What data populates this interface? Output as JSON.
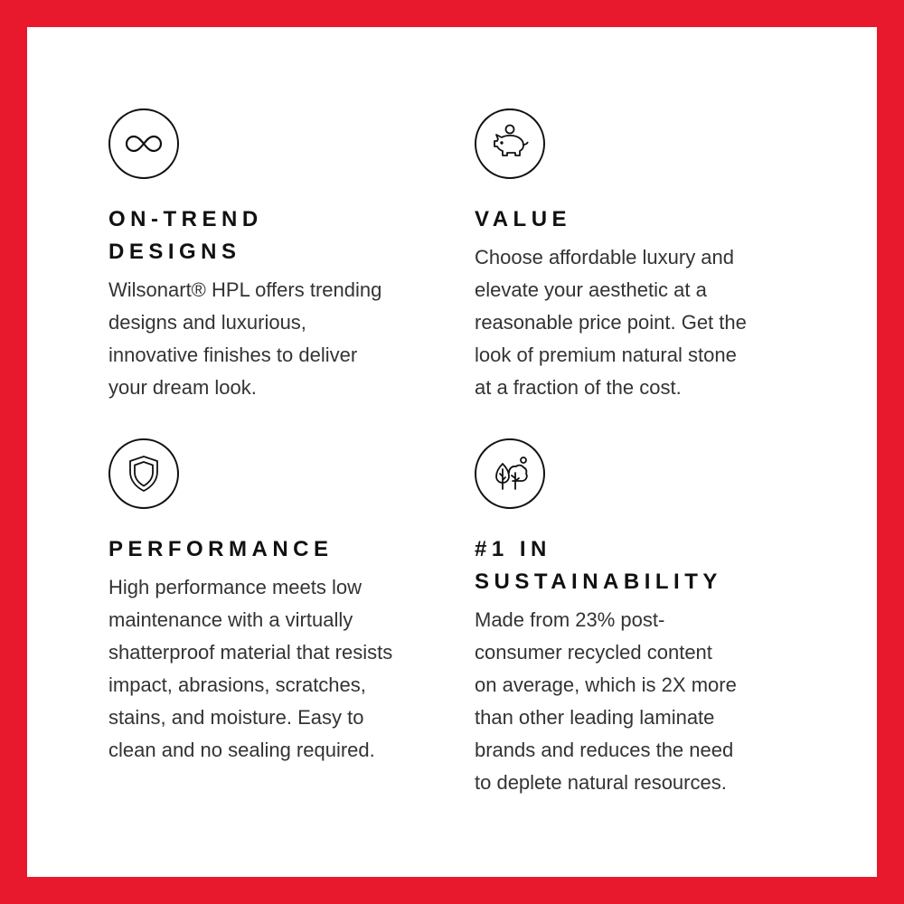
{
  "colors": {
    "border": "#e8192c",
    "text": "#333333",
    "heading": "#111111"
  },
  "features": [
    {
      "icon": "infinity-icon",
      "heading": [
        "ON-TREND",
        "DESIGNS"
      ],
      "body": [
        "Wilsonart® HPL offers trending",
        "designs and luxurious,",
        "innovative finishes to deliver",
        "your dream look."
      ]
    },
    {
      "icon": "piggy-bank-icon",
      "heading": [
        "VALUE"
      ],
      "body": [
        "Choose affordable luxury and",
        "elevate your aesthetic at a",
        "reasonable price point. Get the",
        "look of premium natural stone",
        "at a fraction of the cost."
      ]
    },
    {
      "icon": "shield-icon",
      "heading": [
        "PERFORMANCE"
      ],
      "body": [
        "High performance meets low",
        "maintenance with a virtually",
        "shatterproof material that resists",
        "impact, abrasions, scratches,",
        "stains, and moisture. Easy to",
        "clean and no sealing required."
      ]
    },
    {
      "icon": "trees-icon",
      "heading": [
        "#1 IN",
        "SUSTAINABILITY"
      ],
      "body": [
        "Made from 23% post-",
        "consumer recycled content",
        "on average, which is 2X more",
        "than other leading laminate",
        "brands and reduces the need",
        "to deplete natural resources."
      ]
    }
  ]
}
